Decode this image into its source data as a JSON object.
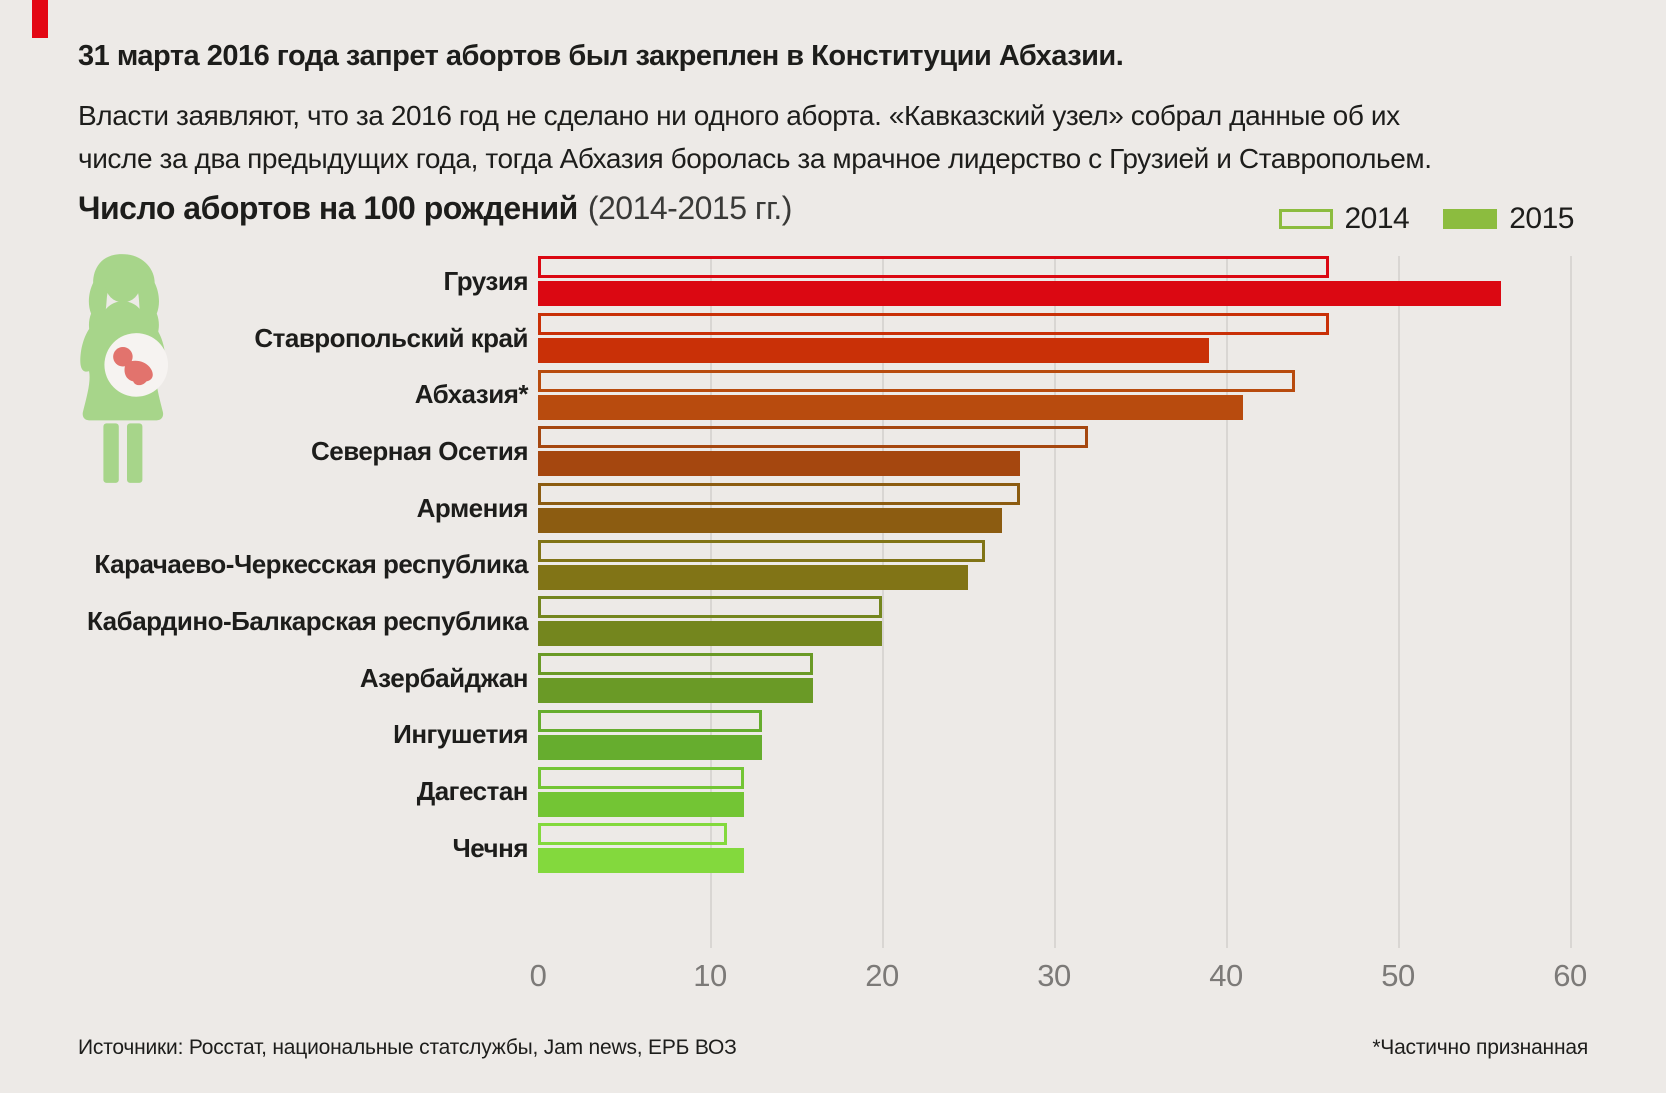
{
  "header": {
    "title": "31 марта 2016 года запрет абортов был закреплен в Конституции Абхазии.",
    "subtitle_line1": "Власти заявляют, что за 2016 год не сделано ни одного аборта. «Кавказский узел» собрал данные об их",
    "subtitle_line2": "числе за два предыдущих года, тогда Абхазия боролась за мрачное лидерство с Грузией и Ставропольем."
  },
  "chart_header": {
    "title_bold": "Число абортов на 100 рождений",
    "title_light": "(2014-2015 гг.)",
    "legend": [
      {
        "label": "2014",
        "style": "outline"
      },
      {
        "label": "2015",
        "style": "solid"
      }
    ]
  },
  "chart_data": {
    "type": "bar",
    "orientation": "horizontal",
    "title": "Число абортов на 100 рождений (2014-2015 гг.)",
    "xlim": [
      0,
      60
    ],
    "x_ticks": [
      0,
      10,
      20,
      30,
      40,
      50,
      60
    ],
    "grid": true,
    "legend_position": "top-right",
    "categories": [
      "Грузия",
      "Ставропольский край",
      "Абхазия*",
      "Северная Осетия",
      "Армения",
      "Карачаево-Черкесская республика",
      "Кабардино-Балкарская республика",
      "Азербайджан",
      "Ингушетия",
      "Дагестан",
      "Чечня"
    ],
    "series": [
      {
        "name": "2014",
        "values": [
          46,
          46,
          44,
          32,
          28,
          26,
          20,
          16,
          13,
          12,
          11
        ]
      },
      {
        "name": "2015",
        "values": [
          56,
          39,
          41,
          28,
          27,
          25,
          20,
          16,
          13,
          12,
          12
        ]
      }
    ],
    "row_colors": [
      "#db0812",
      "#c93007",
      "#b84b0e",
      "#a5470f",
      "#8c5c11",
      "#817416",
      "#74861e",
      "#6a9a26",
      "#66ad2e",
      "#73c534",
      "#83d93d"
    ]
  },
  "footer": {
    "sources": "Источники: Росстат, национальные статслужбы, Jam news, ЕРБ ВОЗ",
    "footnote": "*Частично признанная"
  },
  "colors": {
    "background": "#edeae7",
    "accent": "#e30613",
    "text": "#1d1d1b",
    "grid": "#d9d6d3",
    "axis_text": "#7c7a78",
    "legend_green": "#8cbc3f",
    "icon_body": "#a7d58a",
    "icon_fetus": "#e2736d",
    "icon_belly": "#f6f3f1"
  },
  "icon": {
    "name": "pregnant-woman-icon"
  }
}
